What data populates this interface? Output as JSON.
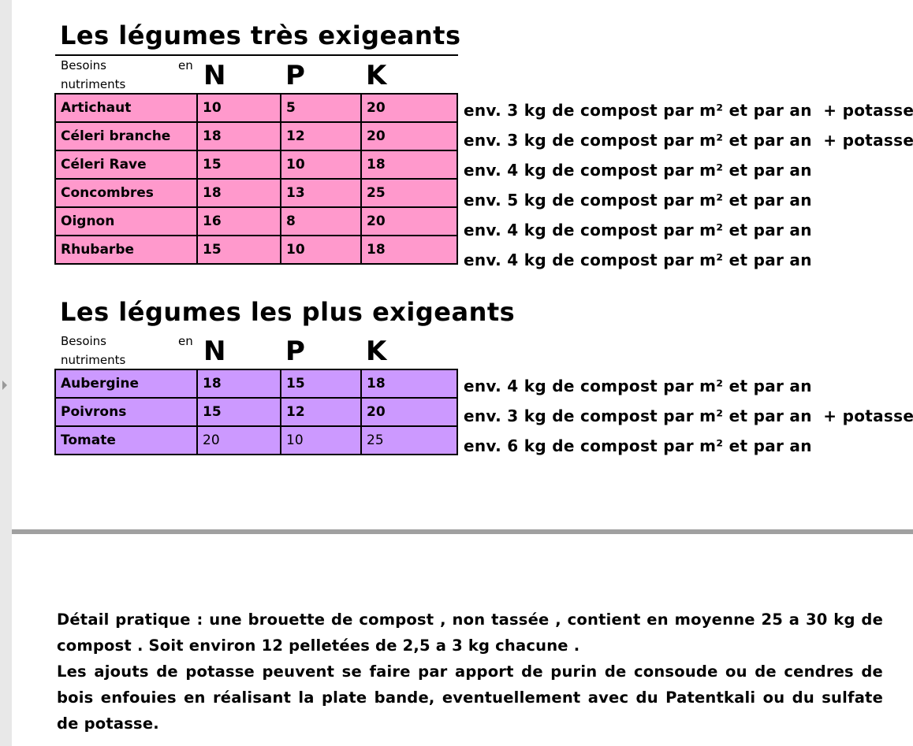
{
  "sections": [
    {
      "title": "Les légumes très exigeants",
      "header_label_1": "Besoins",
      "header_label_en": "en",
      "header_label_2": "nutriments",
      "cols": [
        "N",
        "P",
        "K"
      ],
      "color": "#ff99cc",
      "rows": [
        {
          "name": "Artichaut",
          "n": "10",
          "p": "5",
          "k": "20",
          "note": "env. 3 kg de compost par m² et par an  + potasse"
        },
        {
          "name": "Céleri branche",
          "n": "18",
          "p": "12",
          "k": "20",
          "note": "env. 3 kg de compost par m² et par an  + potasse"
        },
        {
          "name": "Céleri Rave",
          "n": "15",
          "p": "10",
          "k": "18",
          "note": "env. 4 kg de compost par m² et par an"
        },
        {
          "name": "Concombres",
          "n": "18",
          "p": "13",
          "k": "25",
          "note": "env. 5 kg de compost par m² et par an"
        },
        {
          "name": "Oignon",
          "n": "16",
          "p": "8",
          "k": "20",
          "note": "env. 4 kg de compost par m² et par an"
        },
        {
          "name": "Rhubarbe",
          "n": "15",
          "p": "10",
          "k": "18",
          "note": "env. 4 kg de compost par m² et par an"
        }
      ]
    },
    {
      "title": "Les légumes les plus exigeants",
      "header_label_1": "Besoins",
      "header_label_en": "en",
      "header_label_2": "nutriments",
      "cols": [
        "N",
        "P",
        "K"
      ],
      "color": "#cc99ff",
      "rows": [
        {
          "name": "Aubergine",
          "n": "18",
          "p": "15",
          "k": "18",
          "note": "env. 4 kg de compost par m² et par an"
        },
        {
          "name": "Poivrons",
          "n": "15",
          "p": "12",
          "k": "20",
          "note": "env. 3 kg de compost par m² et par an  + potasse"
        },
        {
          "name": "Tomate",
          "n": "20",
          "p": "10",
          "k": "25",
          "note": "env. 6 kg de compost par m² et par an"
        }
      ]
    }
  ],
  "footer": {
    "p1": "Détail pratique : une brouette de compost , non tassée , contient en moyenne 25 a 30 kg de compost . Soit environ 12 pelletées de 2,5 a 3 kg chacune .",
    "p2": "Les ajouts de potasse peuvent se faire par apport de purin de consoude ou de cendres de bois enfouies en réalisant la plate bande, eventuellement avec du Patentkali ou du sulfate de potasse."
  }
}
